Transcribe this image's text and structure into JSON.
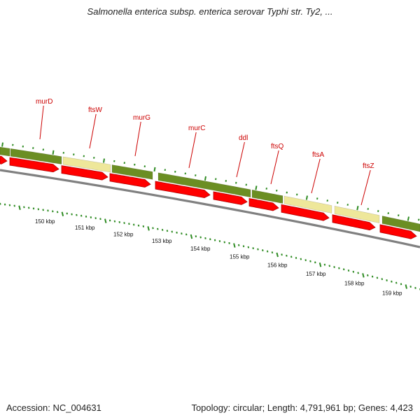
{
  "header": {
    "title": "Salmonella enterica subsp. enterica serovar Typhi str. Ty2, ..."
  },
  "footer": {
    "accession": "Accession: NC_004631",
    "summary": "Topology: circular; Length: 4,791,961 bp; Genes: 4,423"
  },
  "colors": {
    "gene_label": "#cc0000",
    "cds_arrow": "#ff0000",
    "cds_arrow_dark": "#b30000",
    "feature_green": "#6b8e23",
    "feature_yellow": "#eee79a",
    "backbone": "#808080",
    "tick": "#2e8b22"
  },
  "genes": [
    {
      "name": "murD"
    },
    {
      "name": "ftsW"
    },
    {
      "name": "murG"
    },
    {
      "name": "murC"
    },
    {
      "name": "ddl"
    },
    {
      "name": "ftsQ"
    },
    {
      "name": "ftsA"
    },
    {
      "name": "ftsZ"
    }
  ],
  "ruler": [
    {
      "label": "150 kbp"
    },
    {
      "label": "151 kbp"
    },
    {
      "label": "152 kbp"
    },
    {
      "label": "153 kbp"
    },
    {
      "label": "154 kbp"
    },
    {
      "label": "155 kbp"
    },
    {
      "label": "156 kbp"
    },
    {
      "label": "157 kbp"
    },
    {
      "label": "158 kbp"
    },
    {
      "label": "159 kbp"
    }
  ],
  "feature_blocks": [
    {
      "color": "green"
    },
    {
      "color": "green"
    },
    {
      "color": "yellow"
    },
    {
      "color": "green"
    },
    {
      "color": "green"
    },
    {
      "color": "green"
    },
    {
      "color": "yellow"
    },
    {
      "color": "yellow"
    },
    {
      "color": "green"
    }
  ]
}
